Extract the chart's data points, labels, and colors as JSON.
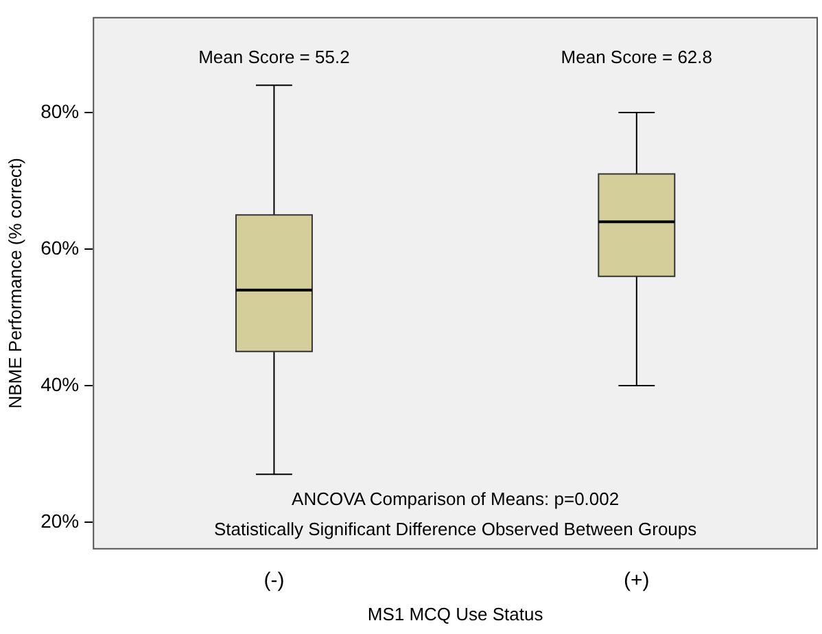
{
  "chart_data": {
    "type": "box",
    "xlabel": "MS1 MCQ Use Status",
    "ylabel": "NBME Performance (% correct)",
    "categories": [
      "(-)",
      "(+)"
    ],
    "boxes": [
      {
        "low": 27,
        "q1": 45,
        "median": 54,
        "q3": 65,
        "high": 84
      },
      {
        "low": 40,
        "q1": 56,
        "median": 64,
        "q3": 71,
        "high": 80
      }
    ],
    "color": "#d4cf9a",
    "ylim": [
      16,
      94
    ],
    "yticks": [
      {
        "value": 20,
        "label": "20%"
      },
      {
        "value": 40,
        "label": "40%"
      },
      {
        "value": 60,
        "label": "60%"
      },
      {
        "value": 80,
        "label": "80%"
      }
    ],
    "annotations": [
      "Mean Score = 55.2",
      "Mean Score = 62.8",
      "ANCOVA Comparison of Means: p=0.002",
      "Statistically Significant Difference Observed Between Groups"
    ]
  }
}
